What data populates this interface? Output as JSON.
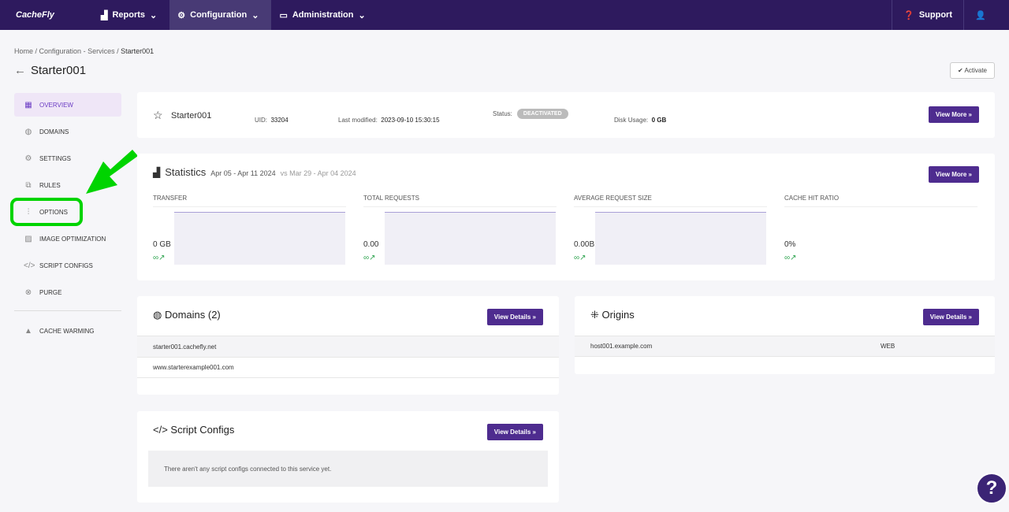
{
  "header": {
    "logo": "CacheFly",
    "nav": [
      {
        "label": "Reports",
        "icon": "chart-icon"
      },
      {
        "label": "Configuration",
        "icon": "gear-icon"
      },
      {
        "label": "Administration",
        "icon": "monitor-icon"
      }
    ],
    "support": "Support"
  },
  "breadcrumb": [
    "Home",
    "Configuration - Services",
    "Starter001"
  ],
  "page_title": "Starter001",
  "activate": "Activate",
  "sidebar": [
    {
      "label": "OVERVIEW",
      "icon": "grid-icon"
    },
    {
      "label": "DOMAINS",
      "icon": "globe-icon"
    },
    {
      "label": "SETTINGS",
      "icon": "gear-icon"
    },
    {
      "label": "RULES",
      "icon": "rules-icon"
    },
    {
      "label": "OPTIONS",
      "icon": "sliders-icon"
    },
    {
      "label": "IMAGE OPTIMIZATION",
      "icon": "image-icon"
    },
    {
      "label": "SCRIPT CONFIGS",
      "icon": "code-icon"
    },
    {
      "label": "PURGE",
      "icon": "x-circle-icon"
    },
    {
      "label": "CACHE WARMING",
      "icon": "flame-icon"
    }
  ],
  "service": {
    "name": "Starter001",
    "uid_label": "UID:",
    "uid": "33204",
    "modified_label": "Last modified:",
    "modified": "2023-09-10 15:30:15",
    "status_label": "Status:",
    "status": "DEACTIVATED",
    "disk_label": "Disk Usage:",
    "disk": "0 GB",
    "button": "View More »"
  },
  "stats": {
    "title": "Statistics",
    "range": "Apr 05 - Apr 11 2024",
    "compare": "vs Mar 29 - Apr 04 2024",
    "button": "View More »",
    "items": [
      {
        "label": "TRANSFER",
        "value": "0 GB",
        "trend": "∞↗"
      },
      {
        "label": "TOTAL REQUESTS",
        "value": "0.00",
        "trend": "∞↗"
      },
      {
        "label": "AVERAGE REQUEST SIZE",
        "value": "0.00B",
        "trend": "∞↗"
      },
      {
        "label": "CACHE HIT RATIO",
        "value": "0%",
        "trend": "∞↗"
      }
    ]
  },
  "domains": {
    "title": "Domains (2)",
    "button": "View Details »",
    "rows": [
      "starter001.cachefly.net",
      "www.starterexample001.com"
    ]
  },
  "origins": {
    "title": "Origins",
    "button": "View Details »",
    "rows": [
      {
        "host": "host001.example.com",
        "type": "WEB"
      }
    ]
  },
  "scripts": {
    "title": "Script Configs",
    "button": "View Details »",
    "empty": "There aren't any script configs connected to this service yet."
  },
  "annotation_color": "#00d400"
}
